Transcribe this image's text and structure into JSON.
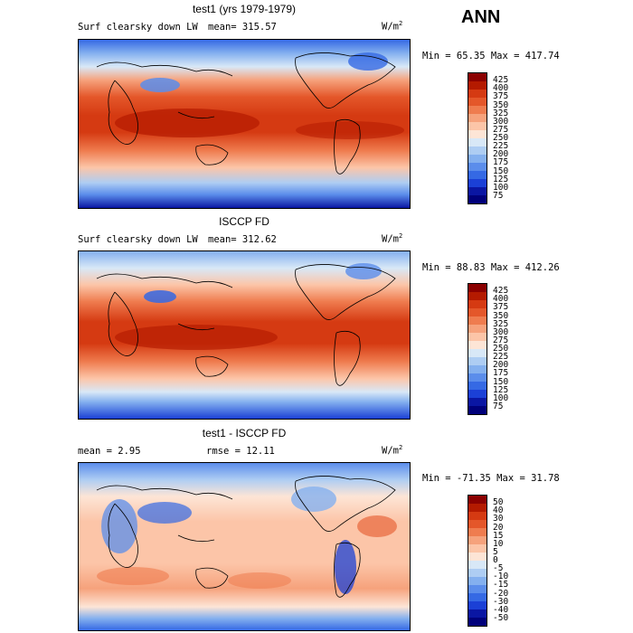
{
  "season": "ANN",
  "units_prefix": "W/m",
  "units_exp": "2",
  "panels": [
    {
      "title": "test1 (yrs 1979-1979)",
      "variable": "Surf clearsky down LW",
      "mean_text": "mean= 315.57",
      "minmax_text": "Min =  65.35 Max = 417.74",
      "levels": [
        "425",
        "400",
        "375",
        "350",
        "325",
        "300",
        "275",
        "250",
        "225",
        "200",
        "175",
        "150",
        "125",
        "100",
        "75"
      ],
      "colors": [
        "#8b0000",
        "#b41a00",
        "#d53a12",
        "#e4572a",
        "#ef7c4f",
        "#f6a27c",
        "#fcc5a8",
        "#fde5d6",
        "#d8e8f7",
        "#aecdf3",
        "#84b0ef",
        "#5b8deb",
        "#3569e4",
        "#1b40d6",
        "#0a16a3",
        "#00007a"
      ]
    },
    {
      "title": "ISCCP FD",
      "variable": "Surf clearsky down LW",
      "mean_text": "mean= 312.62",
      "minmax_text": "Min =  88.83 Max = 412.26",
      "levels": [
        "425",
        "400",
        "375",
        "350",
        "325",
        "300",
        "275",
        "250",
        "225",
        "200",
        "175",
        "150",
        "125",
        "100",
        "75"
      ],
      "colors": [
        "#8b0000",
        "#b41a00",
        "#d53a12",
        "#e4572a",
        "#ef7c4f",
        "#f6a27c",
        "#fcc5a8",
        "#fde5d6",
        "#d8e8f7",
        "#aecdf3",
        "#84b0ef",
        "#5b8deb",
        "#3569e4",
        "#1b40d6",
        "#0a16a3",
        "#00007a"
      ]
    },
    {
      "title": "test1 - ISCCP FD",
      "mean_text": "mean =   2.95",
      "rmse_text": "rmse =  12.11",
      "minmax_text": "Min = -71.35 Max =  31.78",
      "levels": [
        "50",
        "40",
        "30",
        "20",
        "15",
        "10",
        "5",
        "0",
        "-5",
        "-10",
        "-15",
        "-20",
        "-30",
        "-40",
        "-50"
      ],
      "colors": [
        "#8b0000",
        "#b41a00",
        "#d53a12",
        "#e4572a",
        "#ef7c4f",
        "#f6a27c",
        "#fcc5a8",
        "#fde5d6",
        "#d8e8f7",
        "#aecdf3",
        "#84b0ef",
        "#5b8deb",
        "#3569e4",
        "#1b40d6",
        "#0a16a3",
        "#00007a"
      ]
    }
  ]
}
